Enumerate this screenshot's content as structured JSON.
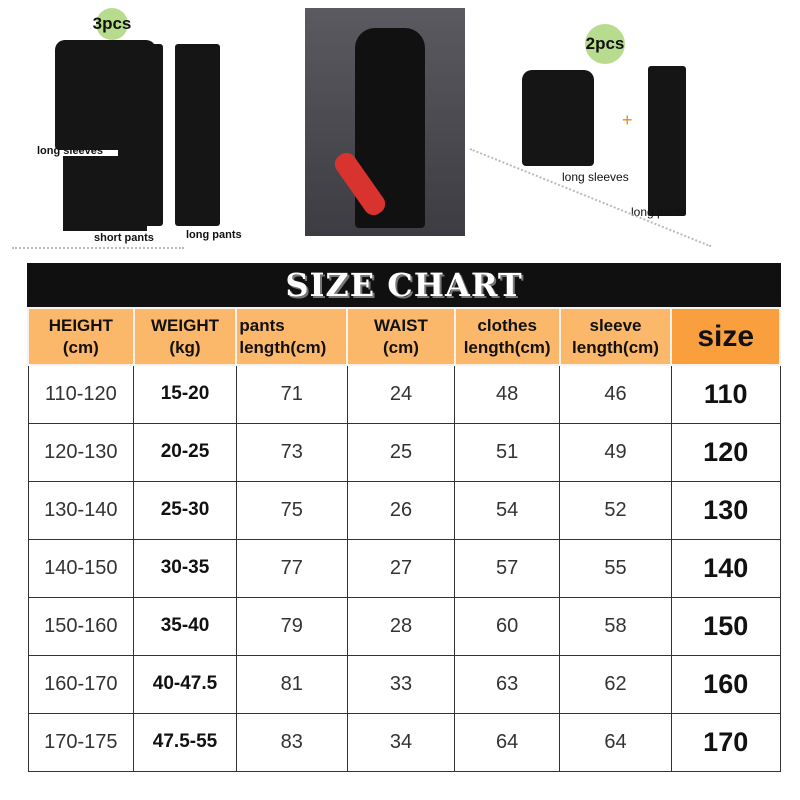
{
  "product_images": {
    "set3": {
      "badge": "3pcs",
      "labels": [
        "long sleeves",
        "short pants",
        "long pants"
      ]
    },
    "set2": {
      "badge": "2pcs",
      "plus": "+",
      "labels": [
        "long sleeves",
        "long pants"
      ]
    }
  },
  "size_chart": {
    "title": "SIZE CHART",
    "headers": [
      [
        "HEIGHT",
        "(cm)"
      ],
      [
        "WEIGHT",
        "(kg)"
      ],
      [
        "pants",
        "length(cm)"
      ],
      [
        "WAIST",
        "(cm)"
      ],
      [
        "clothes",
        "length(cm)"
      ],
      [
        "sleeve",
        "length(cm)"
      ],
      [
        "size",
        ""
      ]
    ],
    "rows": [
      [
        "110-120",
        "15-20",
        "71",
        "24",
        "48",
        "46",
        "110"
      ],
      [
        "120-130",
        "20-25",
        "73",
        "25",
        "51",
        "49",
        "120"
      ],
      [
        "130-140",
        "25-30",
        "75",
        "26",
        "54",
        "52",
        "130"
      ],
      [
        "140-150",
        "30-35",
        "77",
        "27",
        "57",
        "55",
        "140"
      ],
      [
        "150-160",
        "35-40",
        "79",
        "28",
        "60",
        "58",
        "150"
      ],
      [
        "160-170",
        "40-47.5",
        "81",
        "33",
        "63",
        "62",
        "160"
      ],
      [
        "170-175",
        "47.5-55",
        "83",
        "34",
        "64",
        "64",
        "170"
      ]
    ],
    "colors": {
      "header": "#fbb76a",
      "size_header": "#fa9f3e",
      "title_bar": "#101010"
    }
  }
}
